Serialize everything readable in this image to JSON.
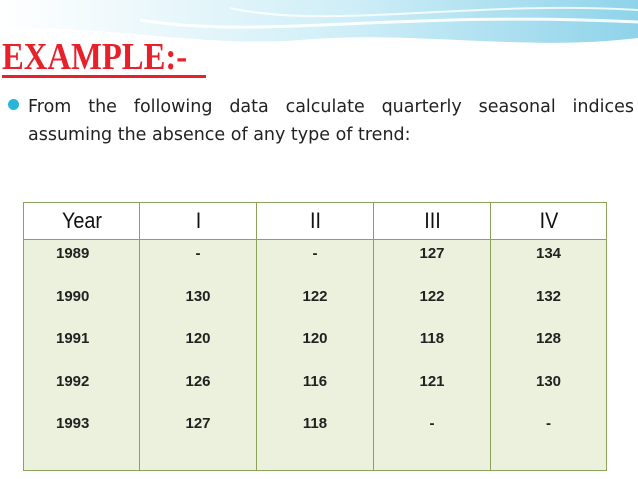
{
  "slide": {
    "title": "EXAMPLE:-",
    "bullet_text": "From the following data calculate quarterly seasonal indices assuming the absence of any type of trend:"
  },
  "table": {
    "headers": [
      "Year",
      "I",
      "II",
      "III",
      "IV"
    ],
    "rows": [
      [
        "1989",
        "-",
        "-",
        "127",
        "134"
      ],
      [
        "1990",
        "130",
        "122",
        "122",
        "132"
      ],
      [
        "1991",
        "120",
        "120",
        "118",
        "128"
      ],
      [
        "1992",
        "126",
        "116",
        "121",
        "130"
      ],
      [
        "1993",
        "127",
        "118",
        "-",
        "-"
      ]
    ]
  },
  "colors": {
    "title": "#e8202a",
    "bullet": "#2bb4d8",
    "table_fill": "#ebf1dd",
    "table_border": "#8aa35a"
  }
}
